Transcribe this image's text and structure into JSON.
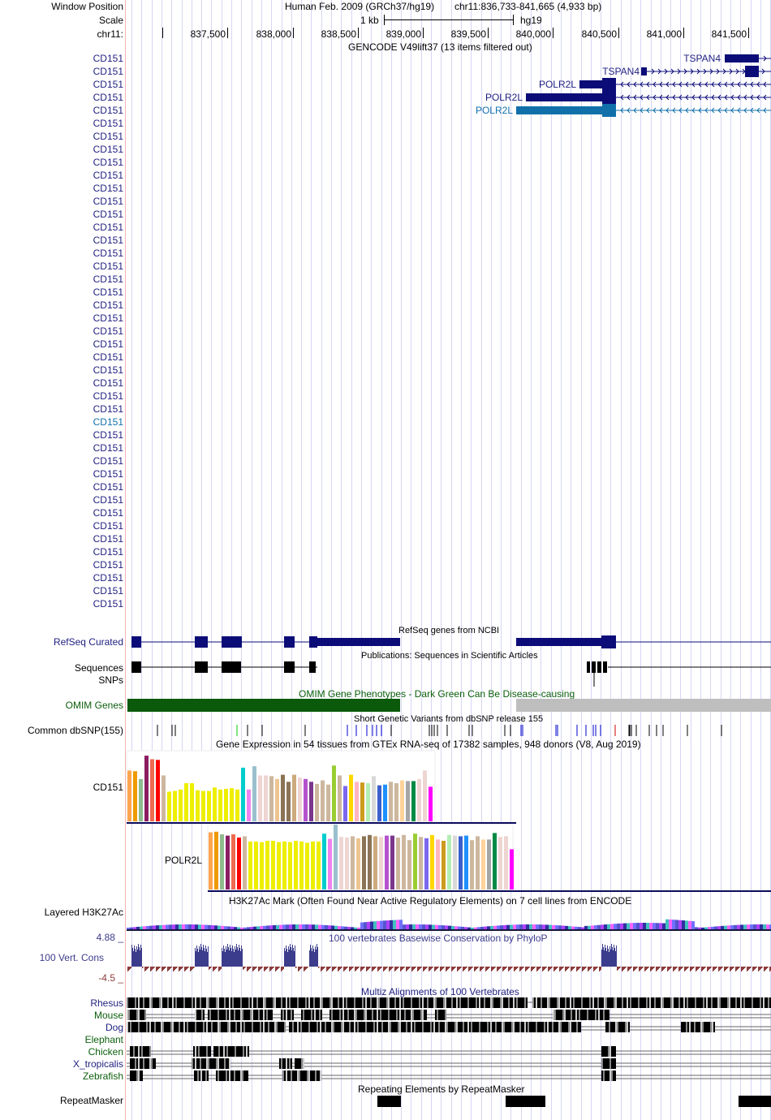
{
  "header": {
    "window_position_label": "Window Position",
    "assembly_text": "Human Feb. 2009 (GRCh37/hg19)",
    "position_text": "chr11:836,733-841,665 (4,933 bp)",
    "scale_label": "Scale",
    "scale_bar_text": "1 kb",
    "scale_db": "hg19",
    "chrom_label": "chr11:",
    "ruler_ticks": [
      "837,500",
      "838,000",
      "838,500",
      "839,000",
      "839,500",
      "840,000",
      "840,500",
      "841,000",
      "841,500"
    ],
    "region_start": 836733,
    "region_end": 841665
  },
  "gencode": {
    "title": "GENCODE V49lift37 (13 items filtered out)",
    "cd151_label": "CD151",
    "cd151_count": 43,
    "highlighted_row_index": 28,
    "right_genes": [
      {
        "label": "TSPAN4",
        "strand": "+"
      },
      {
        "label": "TSPAN4",
        "strand": "+"
      },
      {
        "label": "POLR2L",
        "strand": "-"
      },
      {
        "label": "POLR2L",
        "strand": "-"
      },
      {
        "label": "POLR2L",
        "strand": "-",
        "highlighted": true
      }
    ],
    "colors": {
      "gene": "#0c0c78",
      "highlight": "#1170aa"
    }
  },
  "refseq": {
    "title": "RefSeq genes from NCBI",
    "label": "RefSeq Curated"
  },
  "publications": {
    "title": "Publications: Sequences in Scientific Articles",
    "seq_label": "Sequences",
    "snp_label": "SNPs"
  },
  "omim": {
    "title": "OMIM Gene Phenotypes - Dark Green Can Be Disease-causing",
    "label": "OMIM Genes",
    "colors": {
      "disease": "#0b5a0b",
      "other": "#bebebe"
    }
  },
  "dbsnp": {
    "title": "Short Genetic Variants from dbSNP release 155",
    "label": "Common dbSNP(155)"
  },
  "gtex": {
    "title": "Gene Expression in 54 tissues from GTEx RNA-seq of 17382 samples, 948 donors (V8, Aug 2019)",
    "genes": [
      {
        "label": "CD151",
        "values": [
          0.72,
          0.71,
          0.6,
          0.93,
          0.88,
          0.87,
          0.65,
          0.42,
          0.43,
          0.45,
          0.54,
          0.54,
          0.44,
          0.43,
          0.43,
          0.48,
          0.45,
          0.46,
          0.47,
          0.45,
          0.76,
          0.45,
          0.78,
          0.65,
          0.65,
          0.64,
          0.6,
          0.66,
          0.56,
          0.66,
          0.62,
          0.6,
          0.56,
          0.53,
          0.58,
          0.52,
          0.79,
          0.65,
          0.5,
          0.66,
          0.56,
          0.55,
          0.54,
          0.64,
          0.51,
          0.52,
          0.56,
          0.54,
          0.58,
          0.57,
          0.57,
          0.6,
          0.72,
          0.49
        ]
      },
      {
        "label": "POLR2L",
        "values": [
          0.88,
          0.89,
          0.85,
          0.83,
          0.85,
          0.8,
          0.82,
          0.74,
          0.74,
          0.73,
          0.75,
          0.75,
          0.73,
          0.74,
          0.73,
          0.75,
          0.74,
          0.72,
          0.74,
          0.74,
          0.86,
          0.78,
          1.0,
          0.81,
          0.8,
          0.82,
          0.79,
          0.82,
          0.84,
          0.82,
          0.81,
          0.83,
          0.83,
          0.8,
          0.84,
          0.76,
          0.86,
          0.81,
          0.79,
          0.84,
          0.77,
          0.75,
          0.84,
          0.83,
          0.82,
          0.83,
          0.76,
          0.82,
          0.77,
          0.77,
          0.87,
          0.81,
          0.82,
          0.62
        ]
      }
    ],
    "tissue_colors": [
      "#ffa54f",
      "#ee9a00",
      "#8fbc8f",
      "#8b1c62",
      "#ee6a50",
      "#ff0000",
      "#cdb79e",
      "#eeee00",
      "#eeee00",
      "#eeee00",
      "#eeee00",
      "#eeee00",
      "#eeee00",
      "#eeee00",
      "#eeee00",
      "#eeee00",
      "#eeee00",
      "#eeee00",
      "#eeee00",
      "#eeee00",
      "#00cdcd",
      "#ee82ee",
      "#9ac0cd",
      "#eed5d2",
      "#eed5d2",
      "#cdb79e",
      "#eec591",
      "#8b7355",
      "#8b7355",
      "#cdaa7d",
      "#eed5d2",
      "#b452cd",
      "#7a378b",
      "#cdb79e",
      "#cdb79e",
      "#cdb79e",
      "#9acd32",
      "#cdb79e",
      "#7b68ee",
      "#ffd700",
      "#ffb6c1",
      "#cd9b1d",
      "#b4eeb4",
      "#d9d9d9",
      "#3a5fcd",
      "#1e90ff",
      "#cdb79e",
      "#cdb79e",
      "#ffd39b",
      "#a6a6a6",
      "#008b45",
      "#eed5d2",
      "#eed5d2",
      "#ff00ff"
    ]
  },
  "h3k27ac": {
    "title": "H3K27Ac Mark (Often Found Near Active Regulatory Elements) on 7 cell lines from ENCODE",
    "label": "Layered H3K27Ac"
  },
  "phylop": {
    "title": "100 vertebrates Basewise Conservation by PhyloP",
    "label": "100 Vert. Cons",
    "max_label": "4.88 _",
    "min_label": "-4.5 _",
    "colors": {
      "pos": "#3c3c8c",
      "neg": "#8c3c3c"
    }
  },
  "multiz": {
    "title": "Multiz Alignments of 100 Vertebrates",
    "species": [
      {
        "label": "Rhesus",
        "color": "#1f1f80"
      },
      {
        "label": "Mouse",
        "color": "#0b5e0b"
      },
      {
        "label": "Dog",
        "color": "#1f1f80"
      },
      {
        "label": "Elephant",
        "color": "#0b5e0b"
      },
      {
        "label": "Chicken",
        "color": "#0b5e0b"
      },
      {
        "label": "X_tropicalis",
        "color": "#1f1f80"
      },
      {
        "label": "Zebrafish",
        "color": "#0b5e0b"
      }
    ]
  },
  "repeatmasker": {
    "title": "Repeating Elements by RepeatMasker",
    "label": "RepeatMasker"
  }
}
